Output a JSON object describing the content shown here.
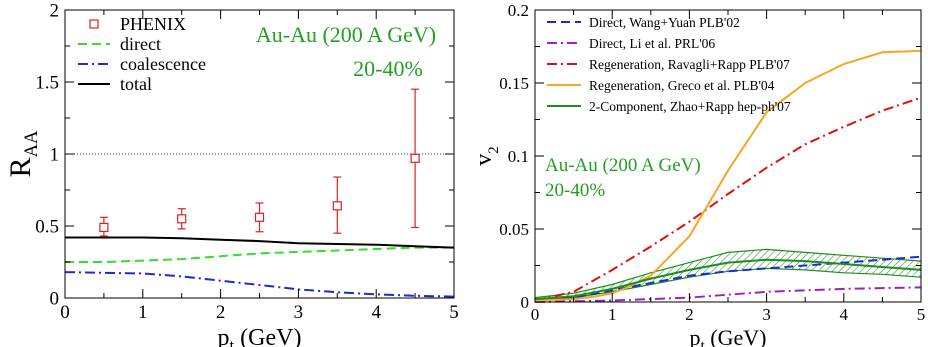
{
  "chart_data": [
    {
      "type": "line",
      "xlabel": "p",
      "xlabel_sub": "t",
      "xlabel_unit": " (GeV)",
      "ylabel": "R",
      "ylabel_sub": "AA",
      "xlim": [
        0,
        5
      ],
      "ylim": [
        0,
        2
      ],
      "xticks": [
        0,
        1,
        2,
        3,
        4,
        5
      ],
      "yticks": [
        0,
        0.5,
        1,
        1.5,
        2
      ],
      "ytick_labels": [
        "0",
        "0.5",
        "1",
        "1.5",
        "2"
      ],
      "reference_line": 1,
      "annotation_lines": [
        "Au-Au (200 A GeV)",
        "20-40%"
      ],
      "annotation_color": "#22a022",
      "legend": [
        {
          "label": "PHENIX",
          "style": "square-marker",
          "color": "#dd2222"
        },
        {
          "label": "direct",
          "style": "dashed",
          "color": "#33dd33"
        },
        {
          "label": "coalescence",
          "style": "dash-dot",
          "color": "#1a2bd6"
        },
        {
          "label": "total",
          "style": "solid",
          "color": "#000000"
        }
      ],
      "points": {
        "name": "PHENIX",
        "x": [
          0.5,
          1.5,
          2.5,
          3.5,
          4.5
        ],
        "y": [
          0.49,
          0.55,
          0.56,
          0.64,
          0.97
        ],
        "err_low": [
          0.43,
          0.48,
          0.46,
          0.45,
          0.49
        ],
        "err_high": [
          0.56,
          0.62,
          0.66,
          0.84,
          1.45
        ]
      },
      "series": [
        {
          "name": "direct",
          "x": [
            0,
            0.5,
            1,
            1.5,
            2,
            2.5,
            3,
            3.5,
            4,
            4.5,
            5
          ],
          "y": [
            0.25,
            0.25,
            0.26,
            0.27,
            0.29,
            0.31,
            0.32,
            0.33,
            0.34,
            0.35,
            0.35
          ]
        },
        {
          "name": "coalescence",
          "x": [
            0,
            0.5,
            1,
            1.5,
            2,
            2.5,
            3,
            3.5,
            4,
            4.5,
            5
          ],
          "y": [
            0.18,
            0.175,
            0.17,
            0.15,
            0.12,
            0.09,
            0.06,
            0.04,
            0.025,
            0.015,
            0.01
          ]
        },
        {
          "name": "total",
          "x": [
            0,
            0.5,
            1,
            1.5,
            2,
            2.5,
            3,
            3.5,
            4,
            4.5,
            5
          ],
          "y": [
            0.42,
            0.42,
            0.42,
            0.415,
            0.405,
            0.395,
            0.38,
            0.375,
            0.37,
            0.36,
            0.35
          ]
        }
      ]
    },
    {
      "type": "line",
      "xlabel": "p",
      "xlabel_sub": "t",
      "xlabel_unit": " (GeV)",
      "ylabel": "v",
      "ylabel_sub": "2",
      "xlim": [
        0,
        5
      ],
      "ylim": [
        0,
        0.2
      ],
      "xticks": [
        0,
        1,
        2,
        3,
        4,
        5
      ],
      "yticks": [
        0,
        0.05,
        0.1,
        0.15,
        0.2
      ],
      "ytick_labels": [
        "0",
        "0.05",
        "0.1",
        "0.15",
        "0.2"
      ],
      "annotation_lines": [
        "Au-Au (200 A GeV)",
        "20-40%"
      ],
      "annotation_color": "#22a022",
      "legend": [
        {
          "label": "Direct, Wang+Yuan PLB'02",
          "style": "dashed",
          "color": "#1a2bd6"
        },
        {
          "label": "Direct, Li et al. PRL'06",
          "style": "dash-dot",
          "color": "#9a22c4"
        },
        {
          "label": "Regeneration, Ravagli+Rapp PLB'07",
          "style": "dash-dot",
          "color": "#dd1111"
        },
        {
          "label": "Regeneration, Greco et al. PLB'04",
          "style": "solid",
          "color": "#f5a623"
        },
        {
          "label": "2-Component, Zhao+Rapp hep-ph'07",
          "style": "solid",
          "color": "#1e8c1e"
        }
      ],
      "band": {
        "name": "2-Component, Zhao+Rapp hep-ph'07",
        "x": [
          0,
          0.5,
          1,
          1.5,
          2,
          2.5,
          3,
          3.5,
          4,
          4.5,
          5
        ],
        "low": [
          0.001,
          0.003,
          0.007,
          0.012,
          0.017,
          0.021,
          0.023,
          0.022,
          0.02,
          0.019,
          0.017
        ],
        "high": [
          0.003,
          0.006,
          0.012,
          0.02,
          0.027,
          0.034,
          0.036,
          0.034,
          0.032,
          0.03,
          0.028
        ]
      },
      "series": [
        {
          "name": "Direct, Wang+Yuan PLB'02",
          "x": [
            0,
            0.5,
            1,
            1.5,
            2,
            2.5,
            3,
            3.5,
            4,
            4.5,
            5
          ],
          "y": [
            0.001,
            0.003,
            0.008,
            0.013,
            0.018,
            0.021,
            0.023,
            0.025,
            0.027,
            0.029,
            0.031
          ]
        },
        {
          "name": "Direct, Li et al. PRL'06",
          "x": [
            0,
            0.5,
            1,
            1.5,
            2,
            2.5,
            3,
            3.5,
            4,
            4.5,
            5
          ],
          "y": [
            0,
            0.0005,
            0.001,
            0.002,
            0.003,
            0.005,
            0.007,
            0.008,
            0.009,
            0.0095,
            0.01
          ]
        },
        {
          "name": "Regeneration, Ravagli+Rapp PLB'07",
          "x": [
            0,
            0.5,
            1,
            1.5,
            2,
            2.5,
            3,
            3.5,
            4,
            4.5,
            5
          ],
          "y": [
            0.001,
            0.007,
            0.022,
            0.038,
            0.055,
            0.074,
            0.092,
            0.108,
            0.12,
            0.131,
            0.14
          ]
        },
        {
          "name": "Regeneration, Greco et al. PLB'04",
          "x": [
            0,
            0.5,
            0.8,
            1,
            1.2,
            1.5,
            2,
            2.5,
            3,
            3.5,
            4,
            4.5,
            5
          ],
          "y": [
            0.001,
            0.002,
            0.004,
            0.006,
            0.01,
            0.018,
            0.045,
            0.09,
            0.13,
            0.15,
            0.163,
            0.171,
            0.172
          ]
        },
        {
          "name": "2-Component, Zhao+Rapp hep-ph'07",
          "x": [
            0,
            0.5,
            1,
            1.5,
            2,
            2.5,
            3,
            3.5,
            4,
            4.5,
            5
          ],
          "y": [
            0.002,
            0.004,
            0.009,
            0.016,
            0.022,
            0.027,
            0.029,
            0.028,
            0.026,
            0.024,
            0.022
          ]
        }
      ]
    }
  ]
}
